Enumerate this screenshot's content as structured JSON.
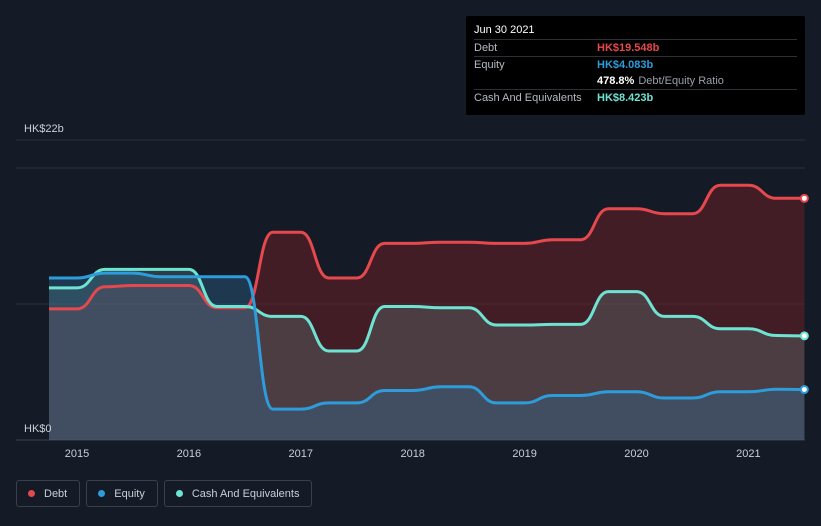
{
  "tooltip": {
    "date": "Jun 30 2021",
    "debt_label": "Debt",
    "debt_value": "HK$19.548b",
    "equity_label": "Equity",
    "equity_value": "HK$4.083b",
    "ratio_value": "478.8%",
    "ratio_label": "Debt/Equity Ratio",
    "cash_label": "Cash And Equivalents",
    "cash_value": "HK$8.423b"
  },
  "legend": [
    {
      "label": "Debt",
      "color": "#e5484d"
    },
    {
      "label": "Equity",
      "color": "#2d9cdb"
    },
    {
      "label": "Cash And Equivalents",
      "color": "#6fe3d2"
    }
  ],
  "chart_data": {
    "type": "area",
    "y_unit": "HK$ billions",
    "ylim": [
      0,
      22
    ],
    "y_tick_labels": [
      {
        "value": 22,
        "label": "HK$22b"
      },
      {
        "value": 0,
        "label": "HK$0"
      }
    ],
    "xlim": [
      2014.6,
      2021.5
    ],
    "x_ticks": [
      2015,
      2016,
      2017,
      2018,
      2019,
      2020,
      2021
    ],
    "grid": true,
    "legend_position": "bottom-left",
    "series": [
      {
        "name": "Debt",
        "color": "#e5484d",
        "points": [
          [
            2014.75,
            10.6
          ],
          [
            2015.0,
            10.6
          ],
          [
            2015.25,
            12.4
          ],
          [
            2015.5,
            12.5
          ],
          [
            2015.75,
            12.5
          ],
          [
            2016.0,
            12.5
          ],
          [
            2016.25,
            10.7
          ],
          [
            2016.5,
            10.7
          ],
          [
            2016.75,
            16.8
          ],
          [
            2017.0,
            16.8
          ],
          [
            2017.25,
            13.1
          ],
          [
            2017.5,
            13.1
          ],
          [
            2017.75,
            15.9
          ],
          [
            2018.0,
            15.9
          ],
          [
            2018.25,
            16.0
          ],
          [
            2018.5,
            16.0
          ],
          [
            2018.75,
            15.9
          ],
          [
            2019.0,
            15.9
          ],
          [
            2019.25,
            16.2
          ],
          [
            2019.5,
            16.2
          ],
          [
            2019.75,
            18.7
          ],
          [
            2020.0,
            18.7
          ],
          [
            2020.25,
            18.3
          ],
          [
            2020.5,
            18.3
          ],
          [
            2020.75,
            20.6
          ],
          [
            2021.0,
            20.6
          ],
          [
            2021.25,
            19.55
          ],
          [
            2021.5,
            19.548
          ]
        ]
      },
      {
        "name": "Equity",
        "color": "#2d9cdb",
        "points": [
          [
            2014.75,
            13.1
          ],
          [
            2015.0,
            13.1
          ],
          [
            2015.25,
            13.5
          ],
          [
            2015.5,
            13.5
          ],
          [
            2015.75,
            13.2
          ],
          [
            2016.0,
            13.2
          ],
          [
            2016.25,
            13.2
          ],
          [
            2016.5,
            13.2
          ],
          [
            2016.75,
            2.5
          ],
          [
            2017.0,
            2.5
          ],
          [
            2017.25,
            3.0
          ],
          [
            2017.5,
            3.0
          ],
          [
            2017.75,
            4.0
          ],
          [
            2018.0,
            4.0
          ],
          [
            2018.25,
            4.3
          ],
          [
            2018.5,
            4.3
          ],
          [
            2018.75,
            3.0
          ],
          [
            2019.0,
            3.0
          ],
          [
            2019.25,
            3.6
          ],
          [
            2019.5,
            3.6
          ],
          [
            2019.75,
            3.9
          ],
          [
            2020.0,
            3.9
          ],
          [
            2020.25,
            3.4
          ],
          [
            2020.5,
            3.4
          ],
          [
            2020.75,
            3.9
          ],
          [
            2021.0,
            3.9
          ],
          [
            2021.25,
            4.1
          ],
          [
            2021.5,
            4.083
          ]
        ]
      },
      {
        "name": "Cash And Equivalents",
        "color": "#6fe3d2",
        "points": [
          [
            2014.75,
            12.3
          ],
          [
            2015.0,
            12.3
          ],
          [
            2015.25,
            13.8
          ],
          [
            2015.5,
            13.8
          ],
          [
            2015.75,
            13.8
          ],
          [
            2016.0,
            13.8
          ],
          [
            2016.25,
            10.8
          ],
          [
            2016.5,
            10.8
          ],
          [
            2016.75,
            10.0
          ],
          [
            2017.0,
            10.0
          ],
          [
            2017.25,
            7.2
          ],
          [
            2017.5,
            7.2
          ],
          [
            2017.75,
            10.8
          ],
          [
            2018.0,
            10.8
          ],
          [
            2018.25,
            10.7
          ],
          [
            2018.5,
            10.7
          ],
          [
            2018.75,
            9.3
          ],
          [
            2019.0,
            9.3
          ],
          [
            2019.25,
            9.35
          ],
          [
            2019.5,
            9.35
          ],
          [
            2019.75,
            12.0
          ],
          [
            2020.0,
            12.0
          ],
          [
            2020.25,
            10.0
          ],
          [
            2020.5,
            10.0
          ],
          [
            2020.75,
            9.0
          ],
          [
            2021.0,
            9.0
          ],
          [
            2021.25,
            8.45
          ],
          [
            2021.5,
            8.423
          ]
        ]
      }
    ]
  }
}
